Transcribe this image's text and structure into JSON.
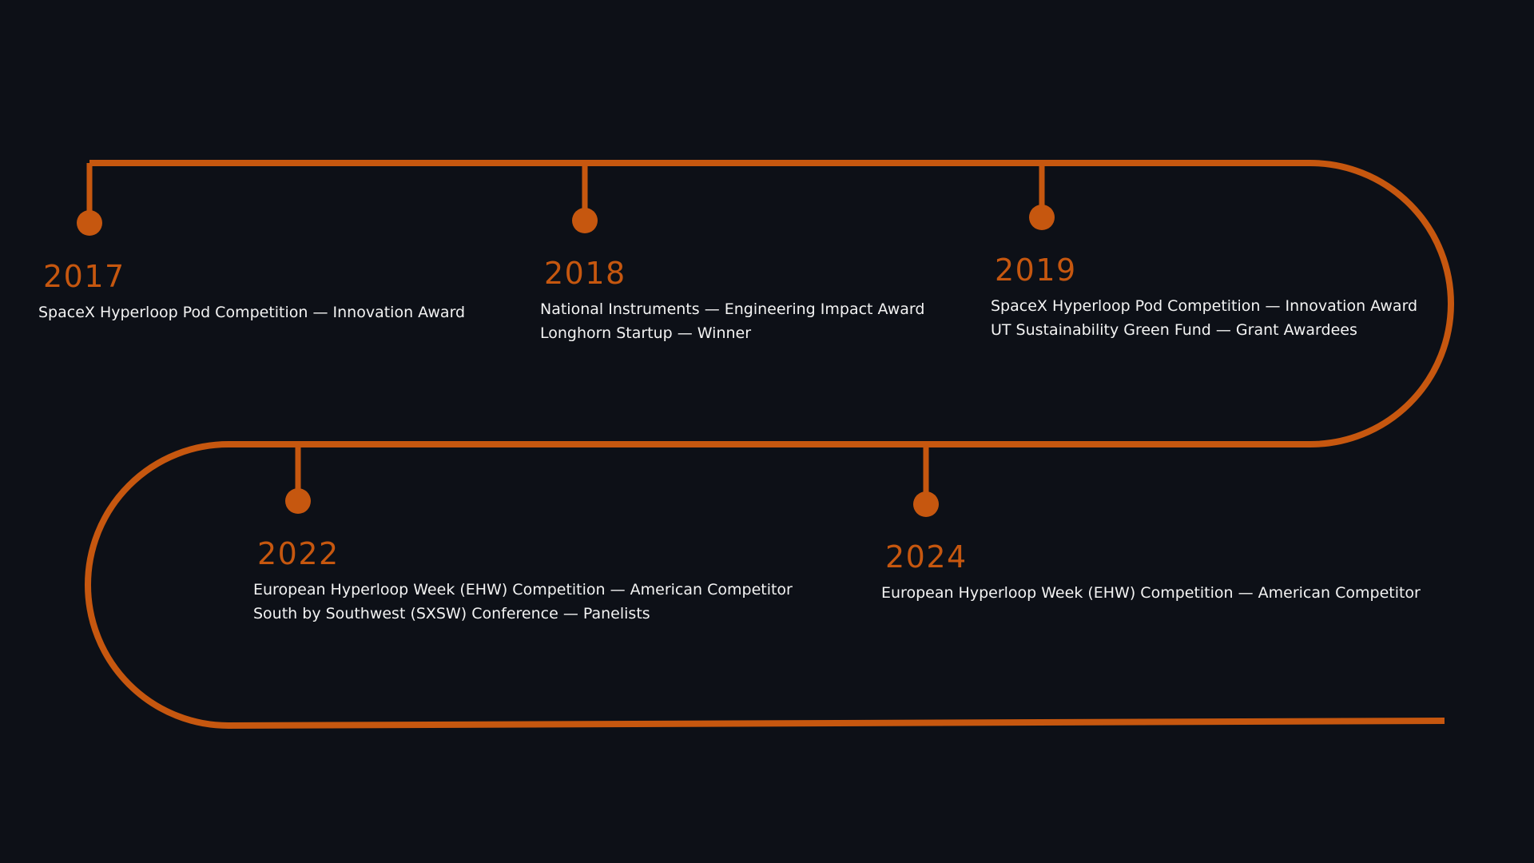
{
  "colors": {
    "background": "#0d1017",
    "accent": "#c6570f",
    "text": "#f3f3f3"
  },
  "timeline": {
    "milestones": [
      {
        "year": "2017",
        "entries": [
          "SpaceX Hyperloop Pod Competition — Innovation Award"
        ]
      },
      {
        "year": "2018",
        "entries": [
          "National Instruments — Engineering Impact Award",
          "Longhorn Startup — Winner"
        ]
      },
      {
        "year": "2019",
        "entries": [
          "SpaceX Hyperloop Pod Competition — Innovation Award",
          "UT Sustainability Green Fund — Grant Awardees"
        ]
      },
      {
        "year": "2022",
        "entries": [
          "European Hyperloop Week (EHW) Competition — American Competitor",
          "South by Southwest (SXSW) Conference — Panelists"
        ]
      },
      {
        "year": "2024",
        "entries": [
          "European Hyperloop Week (EHW) Competition — American Competitor"
        ]
      }
    ]
  }
}
